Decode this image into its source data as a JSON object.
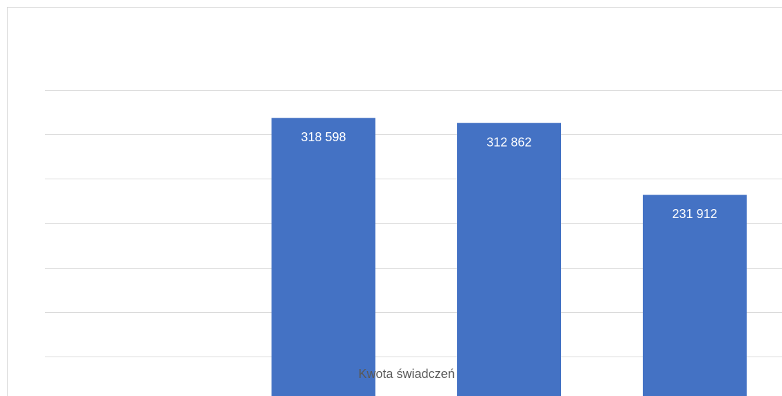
{
  "chart_data": {
    "type": "bar",
    "categories": [
      null,
      null,
      null,
      null
    ],
    "series": [
      {
        "name": "Kwota świadczeń",
        "color": "#4472c4",
        "values": [
          null,
          318598,
          312862,
          231912
        ],
        "value_labels": [
          null,
          "318 598",
          "312 862",
          "231 912"
        ]
      }
    ],
    "ylim": [
      0,
      350000
    ],
    "yticks": [
      50000,
      100000,
      150000,
      200000,
      250000,
      300000,
      350000
    ],
    "grid": true
  }
}
